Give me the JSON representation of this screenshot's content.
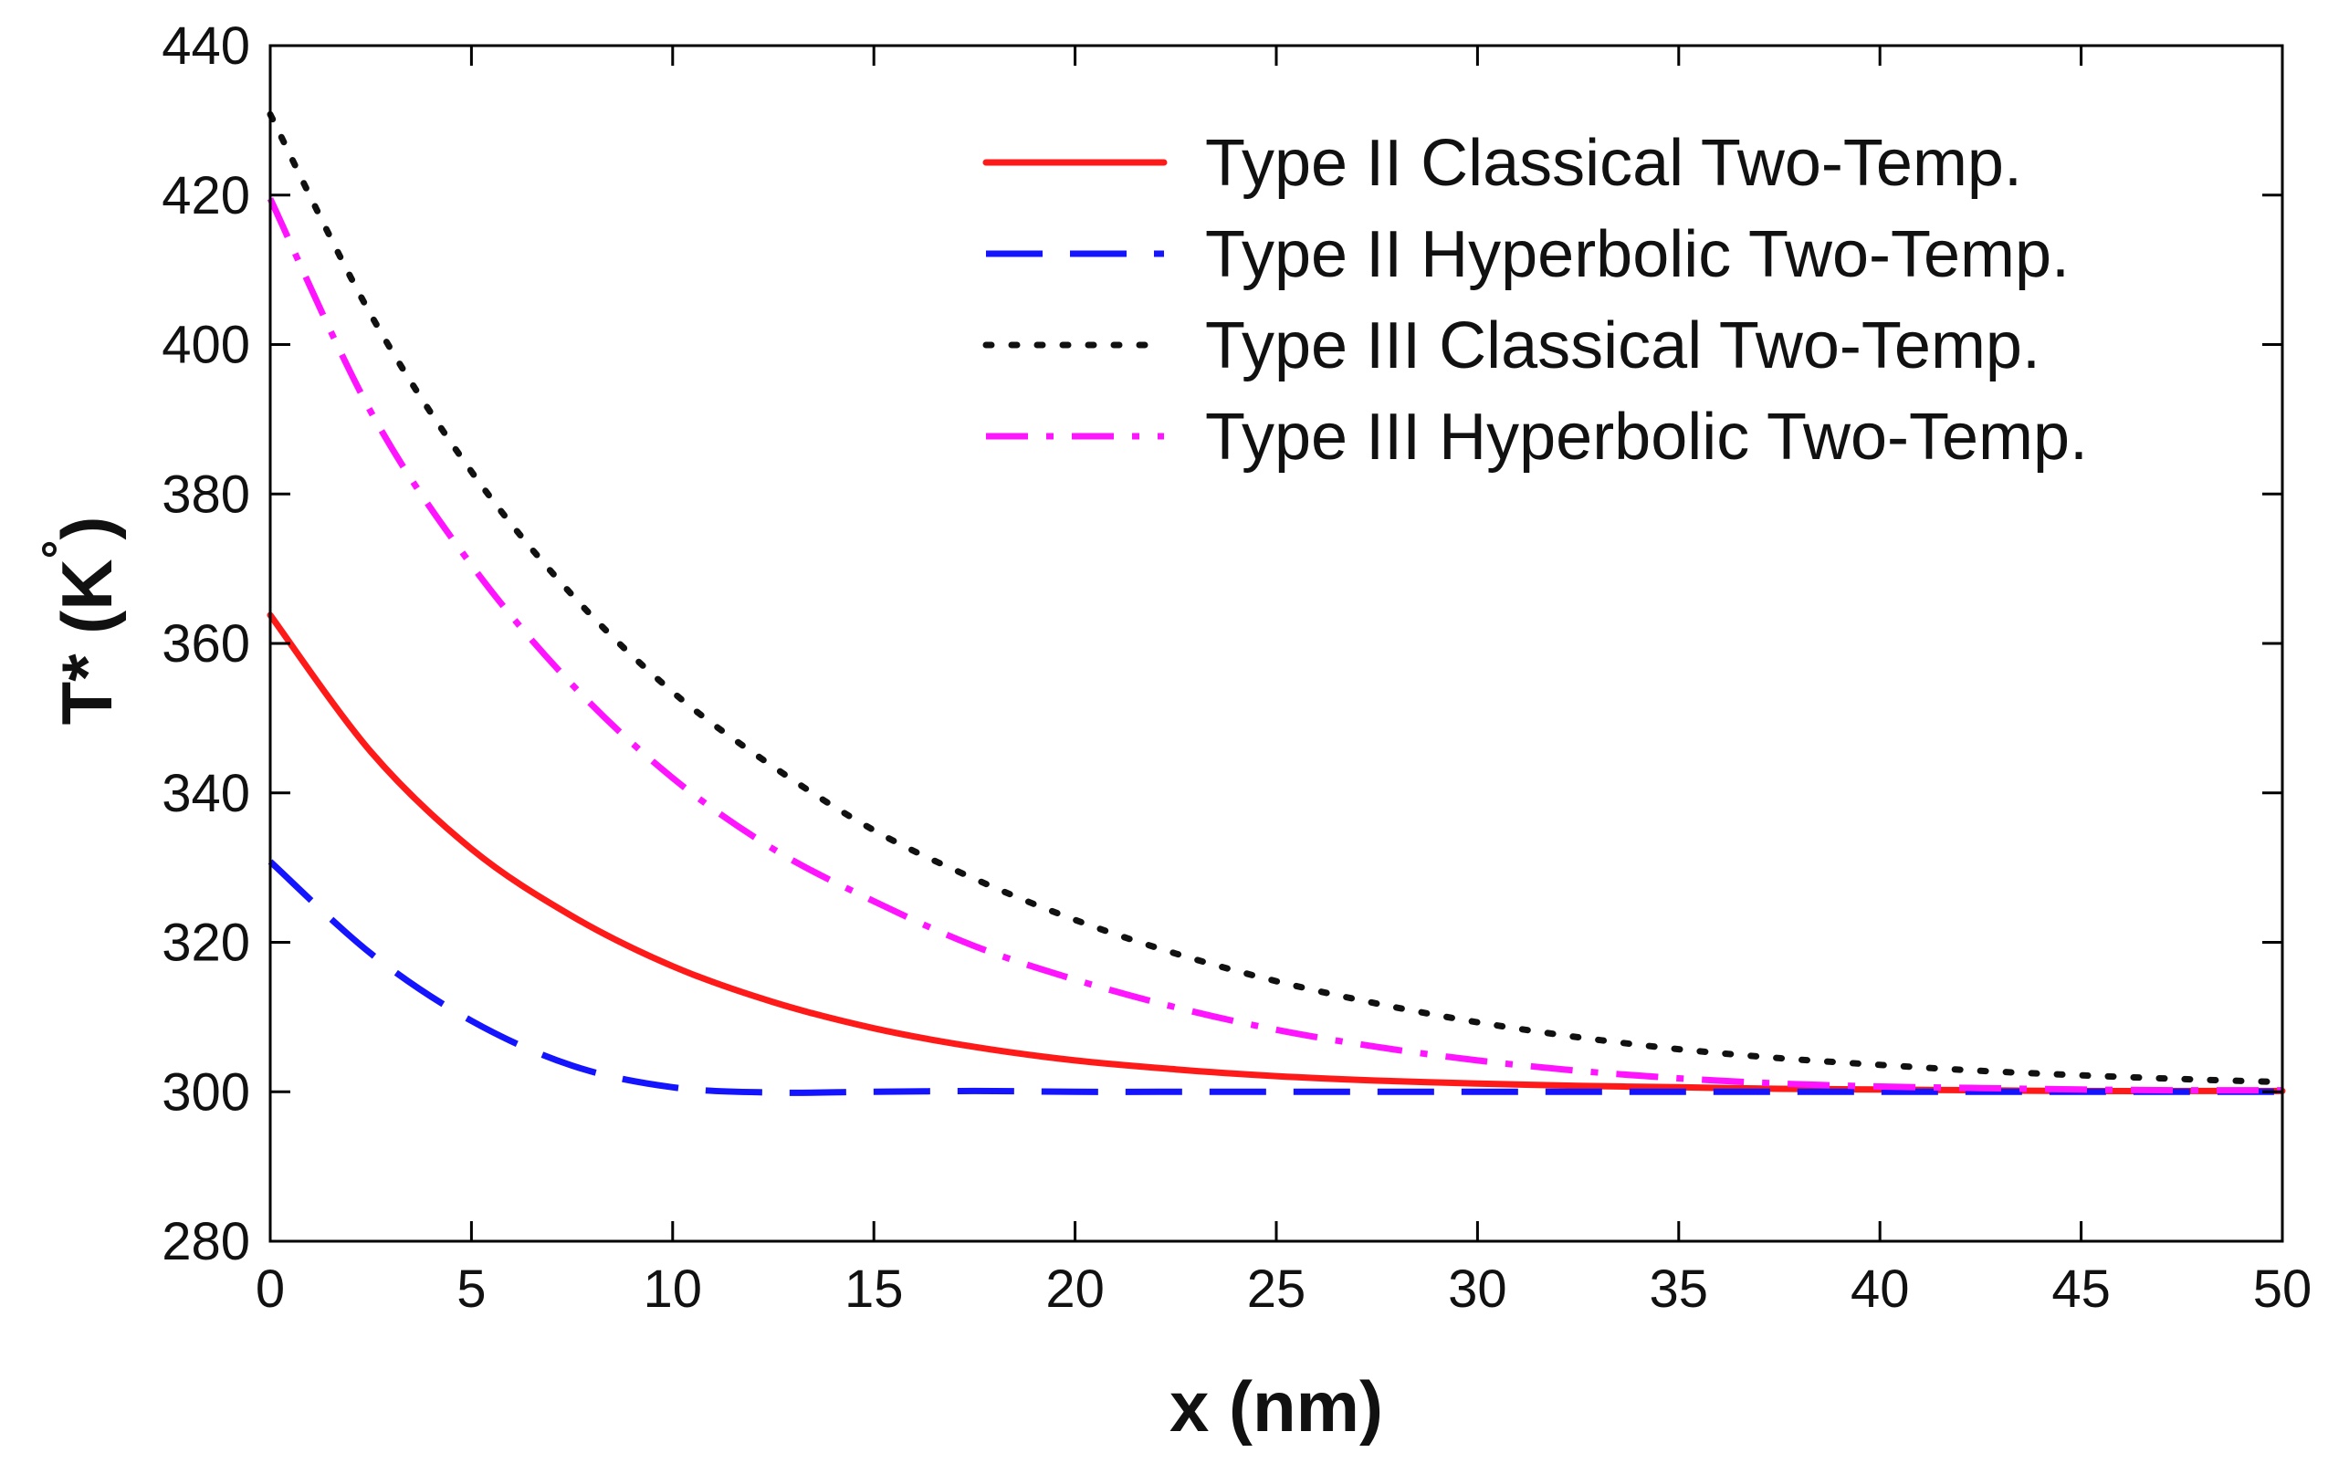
{
  "chart_data": {
    "type": "line",
    "title": "",
    "xlabel": "x (nm)",
    "ylabel_main": "T* (K",
    "ylabel_degree": "°",
    "ylabel_close": ")",
    "xlim": [
      0,
      50
    ],
    "ylim": [
      280,
      440
    ],
    "xticks": [
      0,
      5,
      10,
      15,
      20,
      25,
      30,
      35,
      40,
      45,
      50
    ],
    "yticks": [
      280,
      300,
      320,
      340,
      360,
      380,
      400,
      420,
      440
    ],
    "grid": false,
    "legend_position": "top-right",
    "x": [
      0,
      2.5,
      5,
      7.5,
      10,
      12.5,
      15,
      17.5,
      20,
      22.5,
      25,
      27.5,
      30,
      32.5,
      35,
      37.5,
      40,
      42.5,
      45,
      47.5,
      50
    ],
    "series": [
      {
        "name": "Type II Classical Two-Temp.",
        "color": "#ff1a1a",
        "style": "solid",
        "values": [
          363.8,
          345.5,
          332.5,
          323.5,
          316.8,
          312.0,
          308.5,
          306.0,
          304.2,
          303.0,
          302.1,
          301.5,
          301.1,
          300.8,
          300.6,
          300.4,
          300.3,
          300.2,
          300.1,
          300.1,
          300.1
        ]
      },
      {
        "name": "Type II Hyperbolic Two-Temp.",
        "color": "#1414ff",
        "style": "dashed",
        "values": [
          330.8,
          318.5,
          309.5,
          303.5,
          300.6,
          299.9,
          300.0,
          300.1,
          300.0,
          300.0,
          300.0,
          300.0,
          300.0,
          300.0,
          300.0,
          300.0,
          300.0,
          300.0,
          300.0,
          300.0,
          300.0
        ]
      },
      {
        "name": "Type III Classical Two-Temp.",
        "color": "#111111",
        "style": "dotted",
        "values": [
          430.8,
          404.0,
          383.0,
          366.5,
          353.5,
          343.5,
          335.0,
          328.5,
          323.0,
          318.5,
          314.8,
          311.8,
          309.3,
          307.3,
          305.7,
          304.5,
          303.6,
          302.8,
          302.2,
          301.7,
          301.3
        ]
      },
      {
        "name": "Type III Hyperbolic Two-Temp.",
        "color": "#ff14ff",
        "style": "dashdot",
        "values": [
          419.5,
          391.0,
          370.5,
          354.5,
          342.0,
          332.5,
          325.5,
          319.5,
          315.0,
          311.3,
          308.3,
          306.0,
          304.2,
          302.8,
          301.8,
          301.1,
          300.7,
          300.5,
          300.3,
          300.2,
          300.2
        ]
      }
    ]
  }
}
